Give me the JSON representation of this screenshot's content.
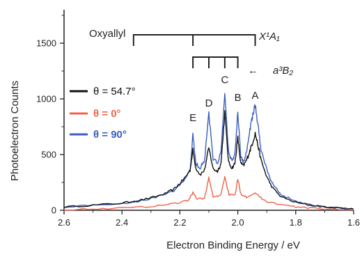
{
  "chart_data": {
    "type": "line",
    "title": "",
    "xlabel": "Electron Binding Energy / eV",
    "ylabel": "Photoelectron Counts",
    "xlim": [
      2.6,
      1.6
    ],
    "ylim": [
      0,
      1800
    ],
    "x_reversed": true,
    "xticks": [
      "2.6",
      "2.4",
      "2.2",
      "2.0",
      "1.8",
      "1.6"
    ],
    "yticks": [
      "0",
      "500",
      "1000",
      "1500"
    ],
    "grid": false,
    "legend_placement": "left",
    "annotations": {
      "molecule": "Oxyallyl",
      "ground_state": "X¹A₁",
      "triplet_state": "a³B₂",
      "arrow": "←"
    },
    "peak_labels": [
      {
        "label": "E",
        "x": 2.155,
        "y": 800
      },
      {
        "label": "D",
        "x": 2.1,
        "y": 930
      },
      {
        "label": "C",
        "x": 2.045,
        "y": 1140
      },
      {
        "label": "B",
        "x": 2.0,
        "y": 980
      },
      {
        "label": "A",
        "x": 1.94,
        "y": 1000
      }
    ],
    "singlet_comb": {
      "x_start": 2.36,
      "x_end": 1.94,
      "ticks": [
        2.36,
        2.155,
        1.94
      ],
      "y": 1575
    },
    "triplet_comb": {
      "ticks": [
        2.155,
        2.1,
        2.045,
        2.0
      ],
      "y": 1375
    },
    "series": [
      {
        "name": "θ = 54.7°",
        "color": "#111111",
        "x": [
          2.6,
          2.5,
          2.4,
          2.35,
          2.3,
          2.25,
          2.22,
          2.2,
          2.18,
          2.165,
          2.155,
          2.145,
          2.13,
          2.115,
          2.1,
          2.085,
          2.07,
          2.058,
          2.045,
          2.032,
          2.02,
          2.01,
          2.0,
          1.99,
          1.98,
          1.97,
          1.96,
          1.95,
          1.94,
          1.93,
          1.92,
          1.9,
          1.88,
          1.85,
          1.8,
          1.75,
          1.7,
          1.65,
          1.6
        ],
        "values": [
          30,
          45,
          65,
          85,
          110,
          150,
          190,
          240,
          300,
          360,
          540,
          380,
          320,
          360,
          560,
          370,
          350,
          420,
          880,
          430,
          380,
          420,
          650,
          420,
          400,
          450,
          520,
          600,
          690,
          580,
          450,
          300,
          200,
          120,
          70,
          45,
          30,
          20,
          10
        ]
      },
      {
        "name": "θ = 0°",
        "color": "#f0624a",
        "x": [
          2.6,
          2.5,
          2.4,
          2.3,
          2.25,
          2.2,
          2.17,
          2.155,
          2.14,
          2.115,
          2.1,
          2.085,
          2.06,
          2.045,
          2.03,
          2.01,
          2.0,
          1.99,
          1.97,
          1.94,
          1.92,
          1.9,
          1.85,
          1.8,
          1.75,
          1.7,
          1.6
        ],
        "values": [
          5,
          12,
          20,
          35,
          50,
          70,
          90,
          160,
          100,
          110,
          290,
          120,
          130,
          300,
          140,
          130,
          280,
          150,
          120,
          160,
          110,
          80,
          50,
          30,
          20,
          12,
          5
        ]
      },
      {
        "name": "θ = 90°",
        "color": "#3a5fbf",
        "x": [
          2.6,
          2.5,
          2.4,
          2.35,
          2.3,
          2.25,
          2.22,
          2.2,
          2.18,
          2.165,
          2.155,
          2.145,
          2.13,
          2.115,
          2.1,
          2.085,
          2.07,
          2.058,
          2.045,
          2.032,
          2.02,
          2.01,
          2.0,
          1.99,
          1.98,
          1.97,
          1.96,
          1.95,
          1.94,
          1.93,
          1.92,
          1.9,
          1.88,
          1.85,
          1.8,
          1.75,
          1.7,
          1.65,
          1.6
        ],
        "values": [
          30,
          45,
          60,
          80,
          105,
          140,
          180,
          230,
          290,
          350,
          680,
          420,
          380,
          450,
          870,
          460,
          420,
          520,
          1060,
          520,
          440,
          500,
          880,
          480,
          430,
          520,
          700,
          830,
          940,
          760,
          550,
          370,
          240,
          140,
          80,
          50,
          30,
          20,
          10
        ]
      }
    ]
  }
}
